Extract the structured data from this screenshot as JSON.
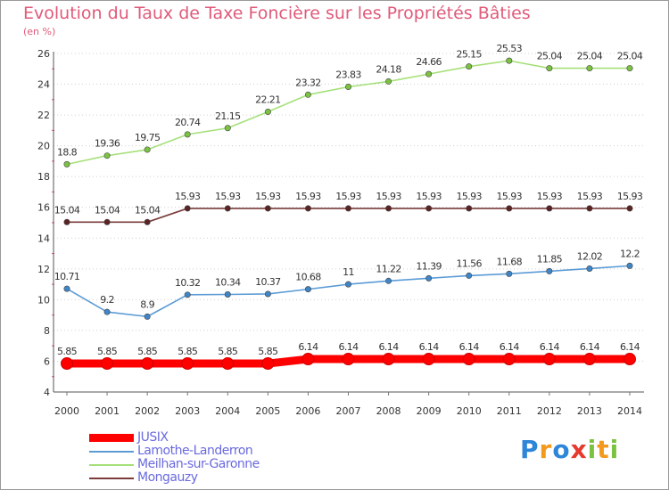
{
  "title": "Evolution du Taux de Taxe Foncière sur les Propriétés Bâties",
  "subtitle": "(en %)",
  "logo": {
    "text": "Proxiti",
    "letters": [
      {
        "char": "P",
        "color": "#2e86d8"
      },
      {
        "char": "r",
        "color": "#f39a1e"
      },
      {
        "char": "o",
        "color": "#2e86d8"
      },
      {
        "char": "x",
        "color": "#e63a2e"
      },
      {
        "char": "i",
        "color": "#7cc242"
      },
      {
        "char": "t",
        "color": "#f39a1e"
      },
      {
        "char": "i",
        "color": "#7cc242"
      }
    ]
  },
  "chart_data": {
    "type": "line",
    "title": "Evolution du Taux de Taxe Foncière sur les Propriétés Bâties",
    "ylabel": "(en %)",
    "xlabel": "",
    "x": [
      "2000",
      "2001",
      "2002",
      "2003",
      "2004",
      "2005",
      "2006",
      "2007",
      "2008",
      "2009",
      "2010",
      "2011",
      "2012",
      "2013",
      "2014"
    ],
    "ylim": [
      4,
      26
    ],
    "yticks": [
      4,
      6,
      8,
      10,
      12,
      14,
      16,
      18,
      20,
      22,
      24,
      26
    ],
    "grid": "horizontal dotted",
    "legend_position": "bottom-left",
    "series": [
      {
        "name": "JUSIX",
        "color": "#ff0000",
        "marker_color": "#ff0000",
        "label_text": "5.85",
        "values": [
          5.85,
          5.85,
          5.85,
          5.85,
          5.85,
          5.85,
          6.14,
          6.14,
          6.14,
          6.14,
          6.14,
          6.14,
          6.14,
          6.14,
          6.14
        ],
        "labels": [
          "5.85",
          "5.85",
          "5.85",
          "5.85",
          "5.85",
          "5.85",
          "6.14",
          "6.14",
          "6.14",
          "6.14",
          "6.14",
          "6.14",
          "6.14",
          "6.14",
          "6.14"
        ],
        "thick": true
      },
      {
        "name": "Lamothe-Landerron",
        "color": "#5b9bd5",
        "marker_color": "#3e86c8",
        "values": [
          10.71,
          9.2,
          8.9,
          10.32,
          10.34,
          10.37,
          10.68,
          11,
          11.22,
          11.39,
          11.56,
          11.68,
          11.85,
          12.02,
          12.2
        ],
        "labels": [
          "10.71",
          "9.2",
          "8.9",
          "10.32",
          "10.34",
          "10.37",
          "10.68",
          "11",
          "11.22",
          "11.39",
          "11.56",
          "11.68",
          "11.85",
          "12.02",
          "12.2"
        ],
        "thick": false
      },
      {
        "name": "Meilhan-sur-Garonne",
        "color": "#a6e07a",
        "marker_color": "#7cc242",
        "values": [
          18.8,
          19.36,
          19.75,
          20.74,
          21.15,
          22.21,
          23.32,
          23.83,
          24.18,
          24.66,
          25.15,
          25.53,
          25.04,
          25.04,
          25.04
        ],
        "labels": [
          "18.8",
          "19.36",
          "19.75",
          "20.74",
          "21.15",
          "22.21",
          "23.32",
          "23.83",
          "24.18",
          "24.66",
          "25.15",
          "25.53",
          "25.04",
          "25.04",
          "25.04"
        ],
        "thick": false
      },
      {
        "name": "Mongauzy",
        "color": "#7a3b3b",
        "marker_color": "#5a2424",
        "values": [
          15.04,
          15.04,
          15.04,
          15.93,
          15.93,
          15.93,
          15.93,
          15.93,
          15.93,
          15.93,
          15.93,
          15.93,
          15.93,
          15.93,
          15.93
        ],
        "labels": [
          "15.04",
          "15.04",
          "15.04",
          "15.93",
          "15.93",
          "15.93",
          "15.93",
          "15.93",
          "15.93",
          "15.93",
          "15.93",
          "15.93",
          "15.93",
          "15.93",
          "15.93"
        ],
        "thick": false
      }
    ]
  }
}
